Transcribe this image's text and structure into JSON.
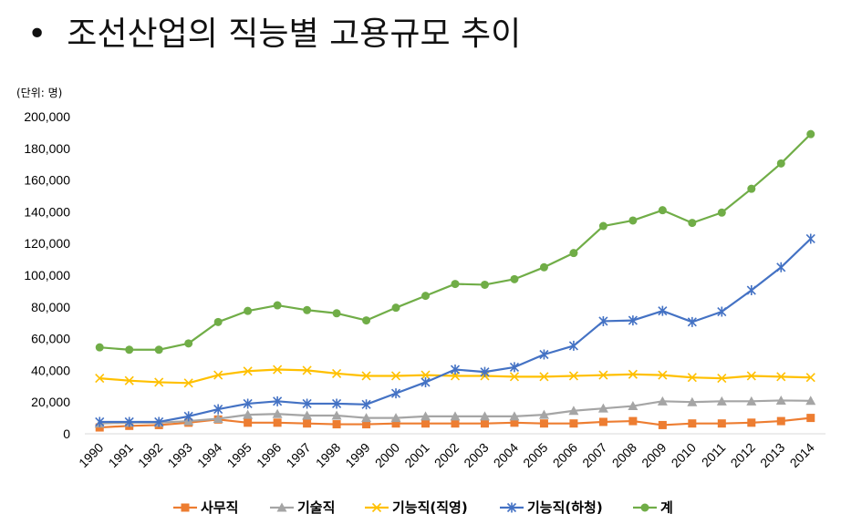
{
  "title": "조선산업의 직능별 고용규모 추이",
  "chart_data": {
    "type": "line",
    "title": "조선산업의 직능별 고용규모 추이",
    "unit_label": "(단위: 명)",
    "ylim": [
      0,
      200000
    ],
    "yticks": [
      "0",
      "20,000",
      "40,000",
      "60,000",
      "80,000",
      "100,000",
      "120,000",
      "140,000",
      "160,000",
      "180,000",
      "200,000"
    ],
    "ytick_values": [
      0,
      20000,
      40000,
      60000,
      80000,
      100000,
      120000,
      140000,
      160000,
      180000,
      200000
    ],
    "categories": [
      "1990",
      "1991",
      "1992",
      "1993",
      "1994",
      "1995",
      "1996",
      "1997",
      "1998",
      "1999",
      "2000",
      "2001",
      "2002",
      "2003",
      "2004",
      "2005",
      "2006",
      "2007",
      "2008",
      "2009",
      "2010",
      "2011",
      "2012",
      "2013",
      "2014"
    ],
    "grid": false,
    "legend_position": "bottom",
    "series": [
      {
        "name": "사무직",
        "color": "#ed7d31",
        "marker": "square",
        "values": [
          4000,
          5000,
          5500,
          7000,
          9000,
          7000,
          7000,
          6500,
          6000,
          6000,
          6500,
          6500,
          6500,
          6500,
          7000,
          6500,
          6500,
          7500,
          8000,
          5500,
          6500,
          6500,
          7000,
          8000,
          10000
        ]
      },
      {
        "name": "기술직",
        "color": "#a5a5a5",
        "marker": "triangle",
        "values": [
          6500,
          7000,
          7000,
          8000,
          9500,
          12000,
          12500,
          11500,
          11500,
          10000,
          10000,
          11000,
          11000,
          11000,
          11000,
          12000,
          14500,
          16000,
          17500,
          20500,
          20000,
          20500,
          20500,
          21000,
          20800
        ]
      },
      {
        "name": "기능직(직영)",
        "color": "#ffc000",
        "marker": "x",
        "values": [
          35000,
          33500,
          32500,
          32000,
          37000,
          39500,
          40500,
          40000,
          38000,
          36500,
          36500,
          37000,
          36500,
          36500,
          36000,
          36000,
          36500,
          37000,
          37500,
          37000,
          35500,
          35000,
          36500,
          36000,
          35500
        ]
      },
      {
        "name": "기능직(하청)",
        "color": "#4472c4",
        "marker": "star",
        "values": [
          7500,
          7500,
          7500,
          11000,
          15500,
          19000,
          20500,
          19000,
          19000,
          18500,
          25500,
          32500,
          40500,
          39000,
          42000,
          50000,
          55500,
          71000,
          71500,
          77500,
          70500,
          77000,
          90500,
          105000,
          123000
        ]
      },
      {
        "name": "계",
        "color": "#70ad47",
        "marker": "circle",
        "values": [
          54500,
          53000,
          53000,
          57000,
          70500,
          77500,
          81000,
          78000,
          76000,
          71500,
          79500,
          87000,
          94500,
          94000,
          97500,
          105000,
          114000,
          131000,
          134500,
          141000,
          133000,
          139500,
          154500,
          170500,
          189000
        ]
      }
    ]
  }
}
